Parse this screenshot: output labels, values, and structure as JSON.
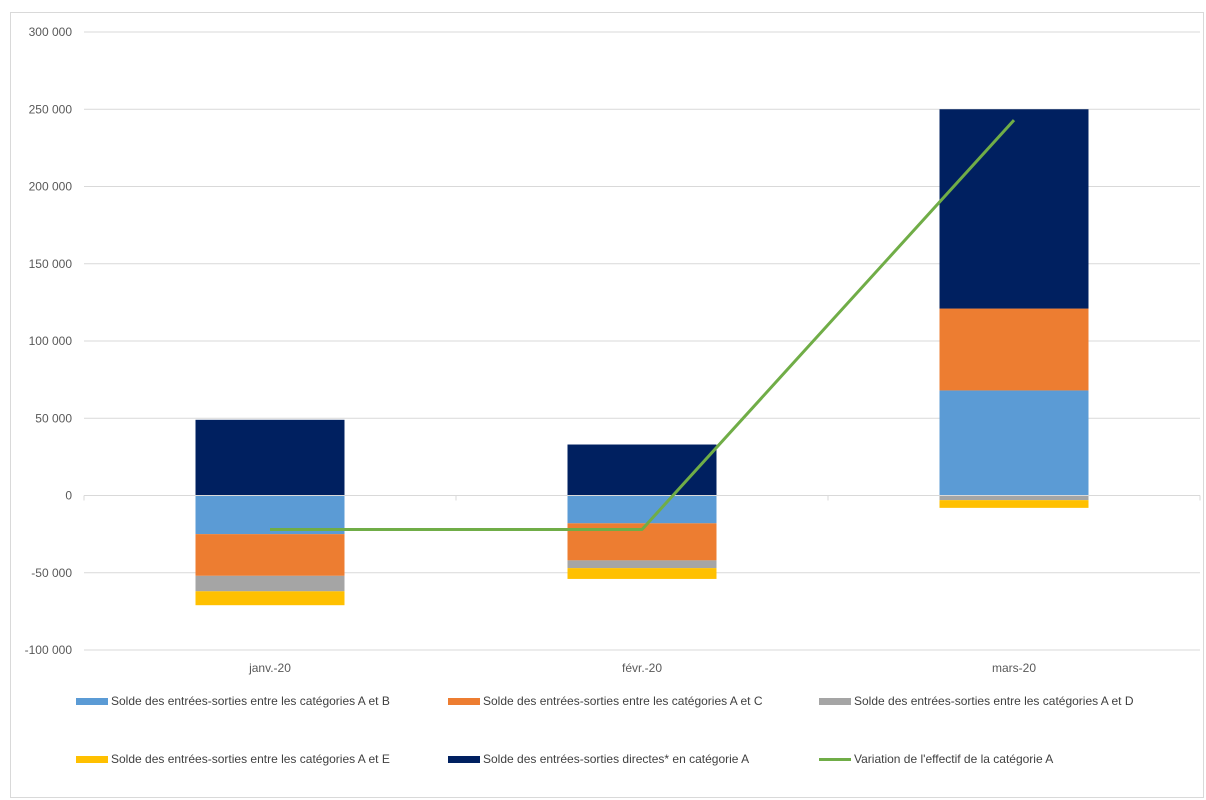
{
  "chart_data": {
    "type": "bar",
    "stacked": true,
    "categories": [
      "janv.-20",
      "févr.-20",
      "mars-20"
    ],
    "ylim": [
      -100000,
      300000
    ],
    "y_ticks": [
      300000,
      250000,
      200000,
      150000,
      100000,
      50000,
      0,
      -50000,
      -100000
    ],
    "y_tick_labels": [
      "300 000",
      "250 000",
      "200 000",
      "150 000",
      "100 000",
      "50 000",
      "0",
      "-50 000",
      "-100 000"
    ],
    "grid": true,
    "legend_position": "bottom",
    "series": [
      {
        "name": "Solde des entrées-sorties entre les catégories A et B",
        "kind": "bar",
        "color": "#5b9bd5",
        "values": [
          -25000,
          -18000,
          68000
        ]
      },
      {
        "name": "Solde des entrées-sorties entre les catégories A et C",
        "kind": "bar",
        "color": "#ed7d31",
        "values": [
          -27000,
          -24000,
          53000
        ]
      },
      {
        "name": "Solde des entrées-sorties entre les catégories A et D",
        "kind": "bar",
        "color": "#a5a5a5",
        "values": [
          -10000,
          -5000,
          -3000
        ]
      },
      {
        "name": "Solde des entrées-sorties entre les catégories A et E",
        "kind": "bar",
        "color": "#ffc000",
        "values": [
          -9000,
          -7000,
          -5000
        ]
      },
      {
        "name": "Solde des entrées-sorties directes* en catégorie A",
        "kind": "bar",
        "color": "#002060",
        "values": [
          49000,
          33000,
          129000
        ]
      },
      {
        "name": "Variation de l'effectif de la catégorie A",
        "kind": "line",
        "color": "#70ad47",
        "values": [
          -22000,
          -22000,
          243000
        ]
      }
    ]
  }
}
